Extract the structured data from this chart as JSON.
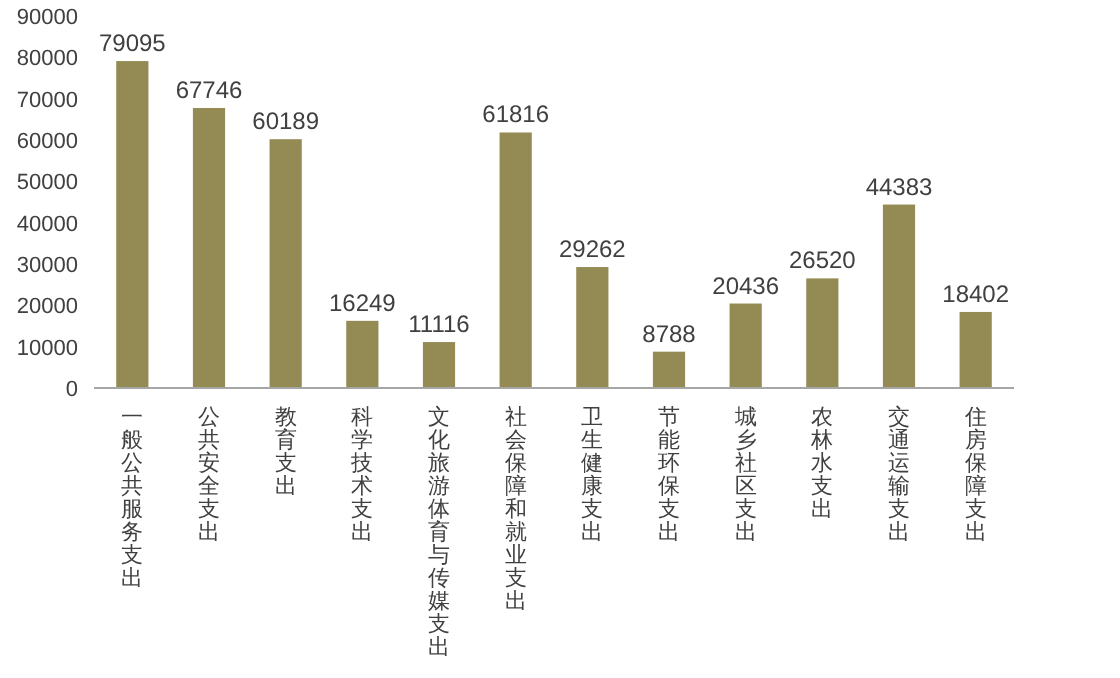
{
  "chart_data": {
    "type": "bar",
    "categories": [
      "一般公共服务支出",
      "公共安全支出",
      "教育支出",
      "科学技术支出",
      "文化旅游体育与传媒支出",
      "社会保障和就业支出",
      "卫生健康支出",
      "节能环保支出",
      "城乡社区支出",
      "农林水支出",
      "交通运输支出",
      "住房保障支出"
    ],
    "values": [
      79095,
      67746,
      60189,
      16249,
      11116,
      61816,
      29262,
      8788,
      20436,
      26520,
      44383,
      18402
    ],
    "color": "#948a54",
    "ylim": [
      0,
      90000
    ],
    "yticks": [
      0,
      10000,
      20000,
      30000,
      40000,
      50000,
      60000,
      70000,
      80000,
      90000
    ],
    "data_labels": true
  }
}
